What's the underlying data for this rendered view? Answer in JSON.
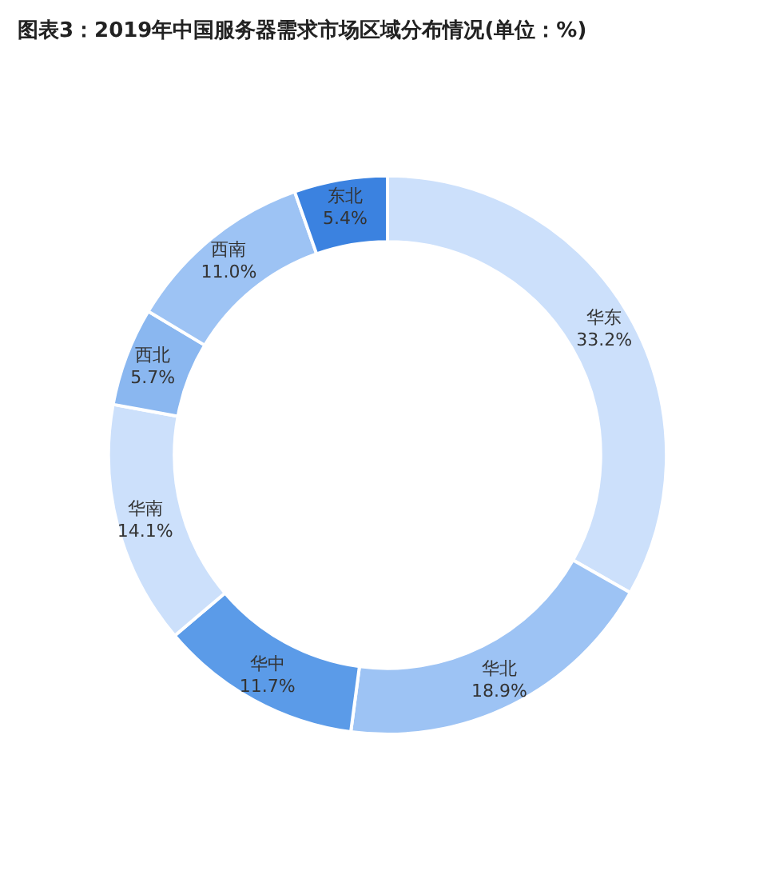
{
  "chart_data": {
    "type": "donut",
    "title": "图表3：2019年中国服务器需求市场区域分布情况(单位：%)",
    "categories": [
      "华东",
      "华北",
      "华中",
      "华南",
      "西北",
      "西南",
      "东北"
    ],
    "values": [
      33.2,
      18.9,
      11.7,
      14.1,
      5.7,
      11.0,
      5.4
    ],
    "value_labels": [
      "33.2%",
      "18.9%",
      "11.7%",
      "14.1%",
      "5.7%",
      "11.0%",
      "5.4%"
    ],
    "colors": [
      "#cce0fb",
      "#9dc3f4",
      "#5b9be8",
      "#cce0fb",
      "#8ab7f0",
      "#9dc3f4",
      "#3b82e0"
    ],
    "legend": false
  }
}
